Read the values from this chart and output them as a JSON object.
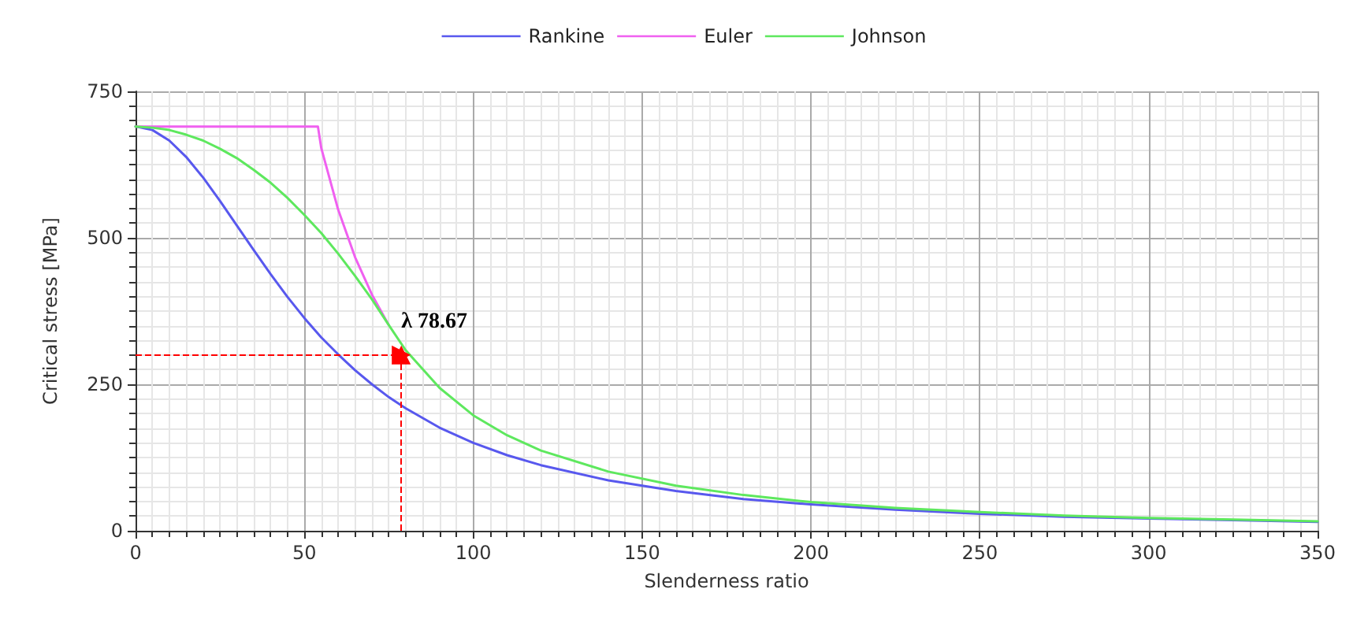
{
  "chart_data": {
    "type": "line",
    "xlabel": "Slenderness ratio",
    "ylabel": "Critical stress [MPa]",
    "xlim": [
      0,
      350
    ],
    "xticks": [
      0,
      50,
      100,
      150,
      200,
      250,
      300,
      350
    ],
    "ylim": [
      0,
      750
    ],
    "yticks": [
      0,
      250,
      500,
      750
    ],
    "grid": true,
    "legend": "top",
    "marker": "none",
    "line_style": "solid",
    "series": [
      {
        "name": "Rankine",
        "color": "#5858ee",
        "x": [
          0,
          5,
          10,
          15,
          20,
          25,
          30,
          35,
          40,
          45,
          50,
          55,
          60,
          65,
          70,
          75,
          80,
          90,
          100,
          110,
          120,
          140,
          160,
          180,
          200,
          225,
          250,
          275,
          300,
          325,
          350
        ],
        "values": [
          690,
          684,
          666,
          638,
          603,
          563,
          521,
          479,
          438,
          399,
          363,
          330,
          301,
          274,
          250,
          228,
          209,
          176,
          150,
          129,
          112,
          86,
          68,
          54,
          45,
          36,
          29,
          24,
          21,
          18,
          15
        ]
      },
      {
        "name": "Euler",
        "color": "#f060f0",
        "x": [
          0,
          54,
          55,
          60,
          65,
          70,
          75
        ],
        "values": [
          690,
          690,
          653,
          548,
          467,
          403,
          351
        ]
      },
      {
        "name": "Johnson",
        "color": "#5ee85e",
        "x": [
          0,
          5,
          10,
          15,
          20,
          25,
          30,
          35,
          40,
          45,
          50,
          55,
          60,
          65,
          70,
          75,
          80,
          90,
          100,
          110,
          120,
          140,
          160,
          180,
          200,
          225,
          250,
          275,
          300,
          325,
          350
        ],
        "values": [
          690,
          688,
          684,
          676,
          666,
          652,
          636,
          616,
          594,
          568,
          539,
          508,
          473,
          435,
          395,
          351,
          308,
          244,
          197,
          163,
          137,
          101,
          77,
          61,
          49,
          39,
          32,
          26,
          22,
          19,
          16
        ]
      }
    ],
    "annotations": [
      {
        "text": "λ 78.67",
        "x": 78.67,
        "y": 300
      }
    ]
  }
}
